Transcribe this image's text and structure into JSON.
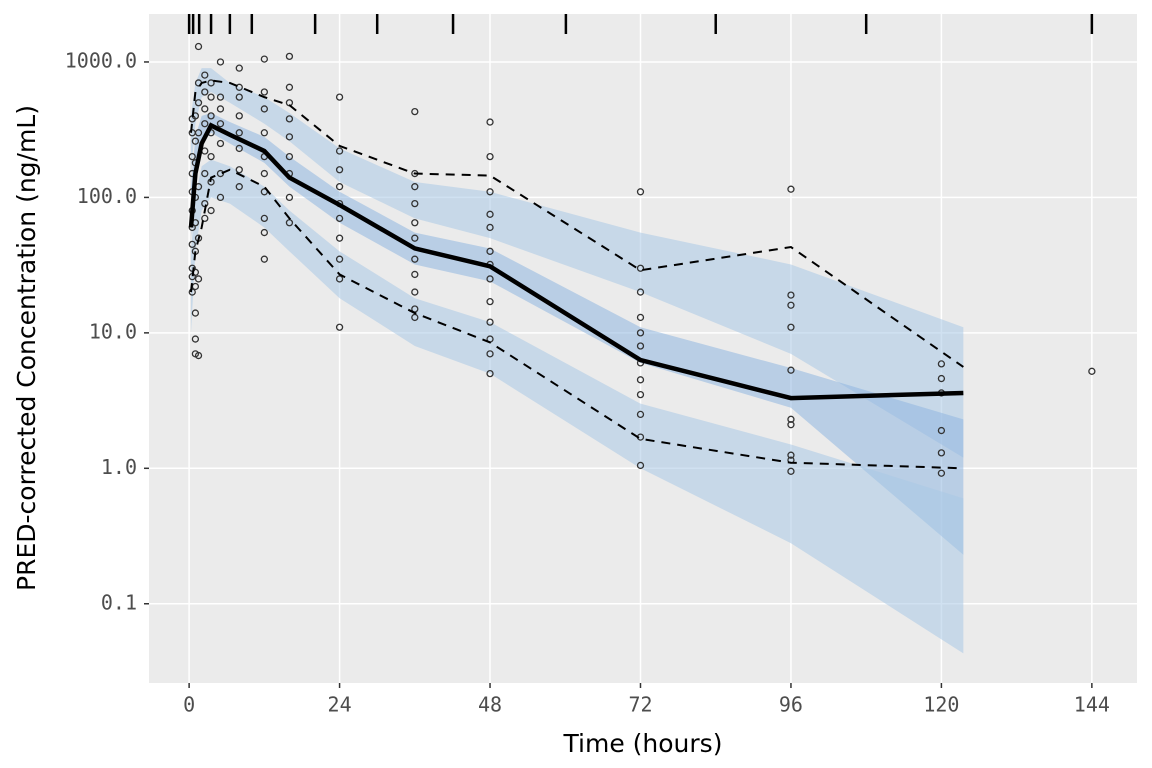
{
  "chart_data": {
    "type": "line",
    "xlabel": "Time (hours)",
    "ylabel": "PRED-corrected Concentration (ng/mL)",
    "xlim": [
      -6.4,
      151.2
    ],
    "ylim": [
      0.026,
      2260
    ],
    "log_y": true,
    "grid": true,
    "xticks": [
      0,
      24,
      48,
      72,
      96,
      120,
      144
    ],
    "yticks": [
      {
        "value": 0.1,
        "label": "0.1"
      },
      {
        "value": 1,
        "label": "1.0"
      },
      {
        "value": 10,
        "label": "10.0"
      },
      {
        "value": 100,
        "label": "100.0"
      },
      {
        "value": 1000,
        "label": "1000.0"
      }
    ],
    "bin_edges": [
      0,
      0.64,
      1.6,
      3.5,
      6.5,
      10,
      20.1,
      30,
      42.1,
      60.1,
      84,
      108,
      144
    ],
    "x": [
      0.3,
      1,
      2,
      3.5,
      6.5,
      12,
      16,
      24,
      36,
      48,
      72,
      96,
      123.5
    ],
    "bands": [
      {
        "color": "#a9c8e6",
        "low": [
          150,
          350,
          550,
          600,
          500,
          350,
          260,
          130,
          70,
          50,
          20,
          7,
          1.2
        ],
        "high": [
          400,
          700,
          900,
          900,
          700,
          550,
          420,
          230,
          130,
          110,
          55,
          32,
          11
        ]
      },
      {
        "color": "#8fb7e0",
        "low": [
          50,
          150,
          250,
          300,
          250,
          180,
          120,
          65,
          32,
          24,
          6,
          2.8,
          0.23
        ],
        "high": [
          120,
          280,
          400,
          420,
          360,
          280,
          200,
          110,
          55,
          42,
          11,
          5.5,
          2.3
        ]
      },
      {
        "color": "#a9c8e6",
        "low": [
          10,
          40,
          80,
          100,
          90,
          60,
          40,
          18,
          8,
          5,
          1,
          0.28,
          0.043
        ],
        "high": [
          40,
          100,
          170,
          190,
          170,
          120,
          80,
          40,
          18,
          12,
          3,
          1.5,
          0.6
        ]
      }
    ],
    "series": [
      {
        "color": "#000000",
        "dash": false,
        "values": [
          60,
          150,
          250,
          340,
          290,
          220,
          140,
          88,
          42,
          31,
          6.3,
          3.3,
          3.6
        ]
      },
      {
        "color": "#000000",
        "dash": true,
        "values": [
          300,
          600,
          700,
          730,
          700,
          550,
          480,
          240,
          150,
          145,
          29,
          43,
          5.6
        ]
      },
      {
        "color": "#000000",
        "dash": true,
        "values": [
          20,
          40,
          60,
          140,
          160,
          120,
          70,
          27,
          14,
          8.5,
          1.65,
          1.1,
          1.0
        ]
      }
    ],
    "points": {
      "x": [
        0.5,
        0.5,
        0.5,
        0.5,
        0.5,
        0.5,
        0.5,
        0.5,
        0.5,
        0.5,
        0.5,
        1,
        1,
        1,
        1,
        1,
        1,
        1,
        1,
        1,
        1,
        1,
        1.5,
        1.5,
        1.5,
        1.5,
        1.5,
        1.5,
        1.5,
        1.5,
        2.5,
        2.5,
        2.5,
        2.5,
        2.5,
        2.5,
        2.5,
        2.5,
        3.5,
        3.5,
        3.5,
        3.5,
        3.5,
        3.5,
        3.5,
        5,
        5,
        5,
        5,
        5,
        5,
        5,
        8,
        8,
        8,
        8,
        8,
        8,
        8,
        8,
        12,
        12,
        12,
        12,
        12,
        12,
        12,
        12,
        12,
        12,
        16,
        16,
        16,
        16,
        16,
        16,
        16,
        16,
        16,
        24,
        24,
        24,
        24,
        24,
        24,
        24,
        24,
        24,
        24,
        36,
        36,
        36,
        36,
        36,
        36,
        36,
        36,
        36,
        36,
        36,
        48,
        48,
        48,
        48,
        48,
        48,
        48,
        48,
        48,
        48,
        48,
        48,
        48,
        72,
        72,
        72,
        72,
        72,
        72,
        72,
        72,
        72,
        72,
        72,
        72,
        96,
        96,
        96,
        96,
        96,
        96,
        96,
        96,
        96,
        96,
        120,
        120,
        120,
        120,
        120,
        120,
        144
      ],
      "y": [
        20,
        26,
        30,
        45,
        60,
        80,
        110,
        150,
        200,
        300,
        380,
        7,
        9,
        14,
        22,
        28,
        40,
        65,
        100,
        180,
        260,
        400,
        6.8,
        25,
        50,
        120,
        300,
        500,
        700,
        1300,
        70,
        90,
        150,
        220,
        350,
        450,
        600,
        800,
        80,
        130,
        200,
        300,
        400,
        550,
        700,
        100,
        150,
        250,
        350,
        450,
        550,
        1000,
        120,
        160,
        230,
        300,
        400,
        550,
        650,
        900,
        35,
        55,
        70,
        110,
        150,
        200,
        300,
        450,
        600,
        1050,
        65,
        100,
        150,
        200,
        280,
        380,
        500,
        650,
        1100,
        11,
        25,
        35,
        50,
        70,
        90,
        120,
        160,
        220,
        550,
        13,
        15,
        20,
        27,
        35,
        50,
        65,
        90,
        120,
        150,
        430,
        5,
        7,
        9,
        12,
        17,
        25,
        32,
        40,
        60,
        75,
        110,
        200,
        360,
        1.05,
        1.7,
        2.5,
        3.5,
        4.5,
        6,
        8,
        10,
        13,
        20,
        30,
        110,
        0.95,
        1.15,
        1.25,
        2.1,
        2.3,
        5.3,
        11,
        16,
        19,
        115,
        0.92,
        1.3,
        1.9,
        3.6,
        4.6,
        5.9,
        5.2
      ]
    }
  }
}
